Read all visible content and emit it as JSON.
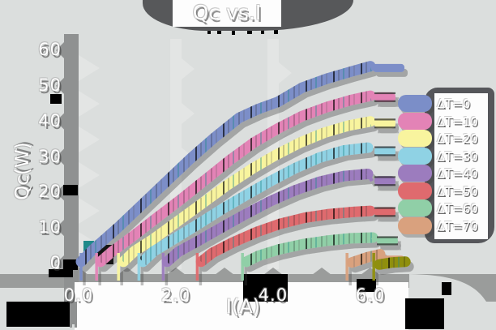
{
  "title": "Qc vs.I",
  "axes": {
    "xlabel": "I(A)",
    "ylabel": "Qc(W)",
    "x_ticks": [
      {
        "label": "0.0",
        "value": 0
      },
      {
        "label": "2.0",
        "value": 2
      },
      {
        "label": "4.0",
        "value": 4
      },
      {
        "label": "6.0",
        "value": 6
      }
    ],
    "y_ticks": [
      {
        "label": "0",
        "value": 0
      },
      {
        "label": "10",
        "value": 10
      },
      {
        "label": "20",
        "value": 20
      },
      {
        "label": "30",
        "value": 30
      },
      {
        "label": "40",
        "value": 40
      },
      {
        "label": "50",
        "value": 50
      },
      {
        "label": "60",
        "value": 60
      }
    ]
  },
  "legend": {
    "entries": [
      "ΔT=0",
      "ΔT=10",
      "ΔT=20",
      "ΔT=30",
      "ΔT=40",
      "ΔT=50",
      "ΔT=60",
      "ΔT=70"
    ]
  },
  "chart_data": {
    "type": "line",
    "title": "Qc vs.I",
    "xlabel": "I(A)",
    "ylabel": "Qc(W)",
    "xlim": [
      -0.6,
      6.9
    ],
    "ylim": [
      -5,
      62
    ],
    "grid": false,
    "legend_position": "right",
    "series": [
      {
        "label": "ΔT=0",
        "color": "#7b8ec8",
        "in_legend": true,
        "zero_cross": 0.05,
        "points": [
          [
            0.05,
            0.5
          ],
          [
            0.3,
            4
          ],
          [
            0.8,
            10
          ],
          [
            1.3,
            16.5
          ],
          [
            1.8,
            23
          ],
          [
            2.3,
            29.5
          ],
          [
            2.8,
            35.5
          ],
          [
            3.3,
            41
          ],
          [
            3.7,
            43.5
          ],
          [
            4.1,
            45.5
          ],
          [
            4.6,
            49.5
          ],
          [
            5.1,
            52
          ],
          [
            5.6,
            54
          ],
          [
            6.0,
            55.5
          ]
        ],
        "end_bar": {
          "x1": 6.05,
          "x2": 6.7,
          "q": 55,
          "h": 10
        }
      },
      {
        "label": "ΔT=10",
        "color": "#e383b6",
        "in_legend": true,
        "zero_cross": 0.37,
        "points": [
          [
            0.45,
            0.5
          ],
          [
            0.7,
            3.5
          ],
          [
            1.1,
            7.5
          ],
          [
            1.6,
            12.8
          ],
          [
            2.1,
            18
          ],
          [
            2.6,
            23.5
          ],
          [
            3.1,
            29
          ],
          [
            3.6,
            34
          ],
          [
            4.1,
            38
          ],
          [
            4.6,
            41.5
          ],
          [
            5.1,
            44
          ],
          [
            5.6,
            46
          ],
          [
            6.0,
            47.2
          ]
        ],
        "pill": {
          "x": 6.3,
          "q": 46.8,
          "w": 26,
          "h": 12
        }
      },
      {
        "label": "ΔT=20",
        "color": "#f8f49e",
        "in_legend": true,
        "zero_cross": 0.82,
        "points": [
          [
            0.92,
            0.5
          ],
          [
            1.15,
            3.5
          ],
          [
            1.55,
            7
          ],
          [
            2.05,
            12
          ],
          [
            2.55,
            17
          ],
          [
            3.05,
            22
          ],
          [
            3.55,
            26.5
          ],
          [
            4.05,
            30.5
          ],
          [
            4.55,
            34
          ],
          [
            5.05,
            36.8
          ],
          [
            5.55,
            38.8
          ],
          [
            6.0,
            40
          ]
        ],
        "pill": {
          "x": 6.3,
          "q": 39.4,
          "w": 26,
          "h": 12
        }
      },
      {
        "label": "ΔT=30",
        "color": "#8fd2e4",
        "in_legend": true,
        "zero_cross": 1.24,
        "points": [
          [
            1.32,
            0.5
          ],
          [
            1.55,
            3.5
          ],
          [
            1.95,
            6.8
          ],
          [
            2.45,
            11
          ],
          [
            2.95,
            15.3
          ],
          [
            3.45,
            19.3
          ],
          [
            3.95,
            23.2
          ],
          [
            4.45,
            26.8
          ],
          [
            4.95,
            29.8
          ],
          [
            5.45,
            31.8
          ],
          [
            5.95,
            32.6
          ]
        ],
        "pill": {
          "x": 6.3,
          "q": 31.6,
          "w": 26,
          "h": 12
        }
      },
      {
        "label": "ΔT=40",
        "color": "#9c7cbe",
        "in_legend": true,
        "zero_cross": 1.74,
        "points": [
          [
            1.82,
            0.5
          ],
          [
            2.05,
            3.3
          ],
          [
            2.45,
            6.3
          ],
          [
            2.95,
            10.2
          ],
          [
            3.45,
            14
          ],
          [
            3.95,
            17.6
          ],
          [
            4.45,
            20.6
          ],
          [
            4.95,
            23
          ],
          [
            5.45,
            24.6
          ],
          [
            5.95,
            25.2
          ]
        ],
        "pill": {
          "x": 6.3,
          "q": 23.2,
          "w": 26,
          "h": 12
        }
      },
      {
        "label": "ΔT=50",
        "color": "#df6a6e",
        "in_legend": true,
        "zero_cross": 2.44,
        "points": [
          [
            2.52,
            0.5
          ],
          [
            2.75,
            3
          ],
          [
            3.15,
            5.8
          ],
          [
            3.65,
            8.8
          ],
          [
            4.15,
            11.2
          ],
          [
            4.65,
            12.9
          ],
          [
            5.15,
            13.9
          ],
          [
            5.65,
            14.5
          ],
          [
            6.0,
            14.8
          ]
        ],
        "pill": {
          "x": 6.3,
          "q": 14.5,
          "w": 26,
          "h": 12
        }
      },
      {
        "label": "ΔT=60",
        "color": "#90cfa7",
        "in_legend": true,
        "zero_cross": 3.37,
        "points": [
          [
            3.45,
            0.5
          ],
          [
            3.7,
            2.2
          ],
          [
            4.1,
            3.9
          ],
          [
            4.6,
            5.4
          ],
          [
            5.1,
            6.4
          ],
          [
            5.6,
            7.1
          ],
          [
            6.05,
            7.3
          ]
        ],
        "pill": {
          "x": 6.35,
          "q": 6.4,
          "w": 26,
          "h": 11
        }
      },
      {
        "label": "ΔT=70",
        "color": "#d9a17e",
        "in_legend": true,
        "zero_cross": 5.52,
        "points": [
          [
            5.62,
            0.3
          ],
          [
            5.95,
            1.8
          ],
          [
            6.2,
            2.6
          ]
        ],
        "end_bar": {
          "x1": 6.25,
          "x2": 6.7,
          "q": 1.2,
          "h": 9
        }
      },
      {
        "label": "",
        "in_legend": false,
        "color": "#8f8f0e",
        "zero_cross": 6.07,
        "points": [
          [
            6.18,
            -0.3
          ],
          [
            6.45,
            0.3
          ],
          [
            6.72,
            0.5
          ]
        ]
      }
    ]
  },
  "style_colors": {
    "background": "#dbdedd",
    "shadow_dark": "#57585a",
    "axis_band": "#8f9191",
    "bottom_band": "#9a9c9b",
    "chevron_light": "#e3e5e4",
    "text": "#ffffff",
    "accent_teal": "#1f8a8a",
    "black": "#000000",
    "white_box": "#fdfdfd"
  }
}
